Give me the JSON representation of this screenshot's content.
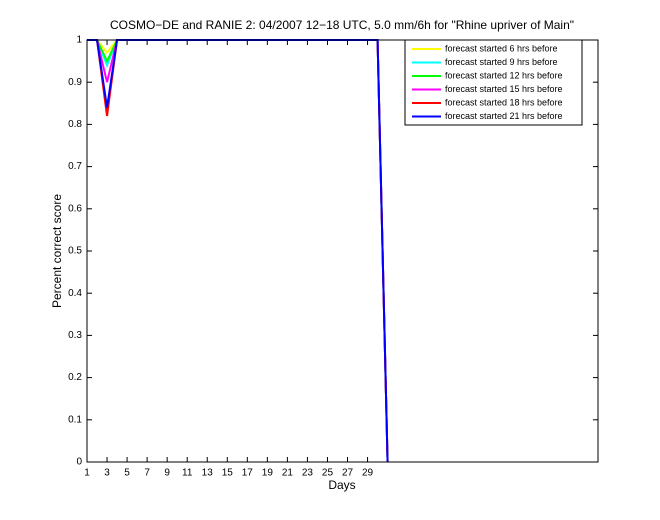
{
  "chart_data": {
    "type": "line",
    "title": "COSMO−DE and RANIE 2: 04/2007 12−18 UTC, 5.0 mm/6h for \"Rhine upriver of Main\"",
    "x_label": "Days",
    "y_label": "Percent correct score",
    "x": [
      1,
      2,
      3,
      4,
      5,
      6,
      7,
      8,
      9,
      10,
      11,
      12,
      13,
      14,
      15,
      16,
      17,
      18,
      19,
      20,
      21,
      22,
      23,
      24,
      25,
      26,
      27,
      28,
      29,
      30,
      31
    ],
    "series": [
      {
        "name": "forecast started 6 hrs before",
        "color": "#ffff00",
        "values": [
          1,
          1,
          0.97,
          1,
          1,
          1,
          1,
          1,
          1,
          1,
          1,
          1,
          1,
          1,
          1,
          1,
          1,
          1,
          1,
          1,
          1,
          1,
          1,
          1,
          1,
          1,
          1,
          1,
          1,
          1,
          0
        ]
      },
      {
        "name": "forecast started 9 hrs before",
        "color": "#00ffff",
        "values": [
          1,
          1,
          0.94,
          1,
          1,
          1,
          1,
          1,
          1,
          1,
          1,
          1,
          1,
          1,
          1,
          1,
          1,
          1,
          1,
          1,
          1,
          1,
          1,
          1,
          1,
          1,
          1,
          1,
          1,
          1,
          0
        ]
      },
      {
        "name": "forecast started 12 hrs before",
        "color": "#00ff00",
        "values": [
          1,
          1,
          0.95,
          1,
          1,
          1,
          1,
          1,
          1,
          1,
          1,
          1,
          1,
          1,
          1,
          1,
          1,
          1,
          1,
          1,
          1,
          1,
          1,
          1,
          1,
          1,
          1,
          1,
          1,
          1,
          0
        ]
      },
      {
        "name": "forecast started 15 hrs before",
        "color": "#ff00ff",
        "values": [
          1,
          1,
          0.9,
          1,
          1,
          1,
          1,
          1,
          1,
          1,
          1,
          1,
          1,
          1,
          1,
          1,
          1,
          1,
          1,
          1,
          1,
          1,
          1,
          1,
          1,
          1,
          1,
          1,
          1,
          1,
          0
        ]
      },
      {
        "name": "forecast started 18 hrs before",
        "color": "#ff0000",
        "values": [
          1,
          1,
          0.82,
          1,
          1,
          1,
          1,
          1,
          1,
          1,
          1,
          1,
          1,
          1,
          1,
          1,
          1,
          1,
          1,
          1,
          1,
          1,
          1,
          1,
          1,
          1,
          1,
          1,
          1,
          1,
          0
        ]
      },
      {
        "name": "forecast started 21 hrs before",
        "color": "#0000ff",
        "values": [
          1,
          1,
          0.84,
          1,
          1,
          1,
          1,
          1,
          1,
          1,
          1,
          1,
          1,
          1,
          1,
          1,
          1,
          1,
          1,
          1,
          1,
          1,
          1,
          1,
          1,
          1,
          1,
          1,
          1,
          1,
          0
        ]
      }
    ],
    "xlim": [
      1,
      52
    ],
    "xticks": [
      1,
      3,
      5,
      7,
      9,
      11,
      13,
      15,
      17,
      19,
      21,
      23,
      25,
      27,
      29
    ],
    "ylim": [
      0,
      1
    ],
    "yticks": [
      0,
      0.1,
      0.2,
      0.3,
      0.4,
      0.5,
      0.6,
      0.7,
      0.8,
      0.9,
      1
    ],
    "legend": "upper right"
  }
}
